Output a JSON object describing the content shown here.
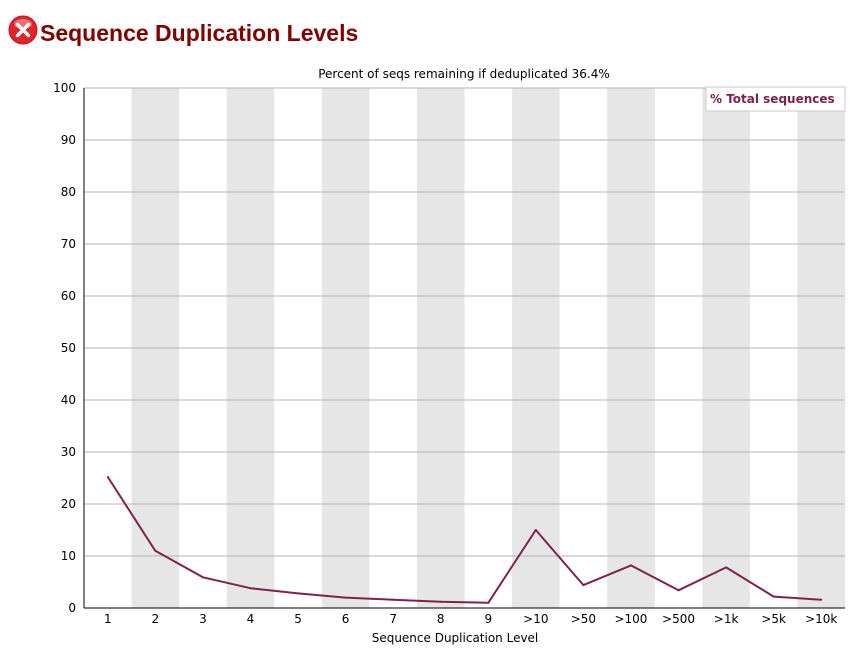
{
  "page": {
    "title": "Sequence Duplication Levels",
    "status_icon": "error-x-icon",
    "status_color": "#e0242c"
  },
  "chart_data": {
    "type": "line",
    "title": "Percent of seqs remaining if deduplicated 36.4%",
    "xlabel": "Sequence Duplication Level",
    "ylabel": "",
    "ylim": [
      0,
      100
    ],
    "yticks": [
      0,
      10,
      20,
      30,
      40,
      50,
      60,
      70,
      80,
      90,
      100
    ],
    "categories": [
      "1",
      "2",
      "3",
      "4",
      "5",
      "6",
      "7",
      "8",
      "9",
      ">10",
      ">50",
      ">100",
      ">500",
      ">1k",
      ">5k",
      ">10k"
    ],
    "series": [
      {
        "name": "% Total sequences",
        "color": "#7f2150",
        "values": [
          25.2,
          11.0,
          5.9,
          3.8,
          2.8,
          2.0,
          1.6,
          1.2,
          1.0,
          15.0,
          4.4,
          8.2,
          3.4,
          7.8,
          2.2,
          1.6
        ]
      }
    ],
    "grid": true,
    "legend_position": "top-right",
    "band_color": "#e6e6e6",
    "grid_color": "#b4b4b4"
  }
}
